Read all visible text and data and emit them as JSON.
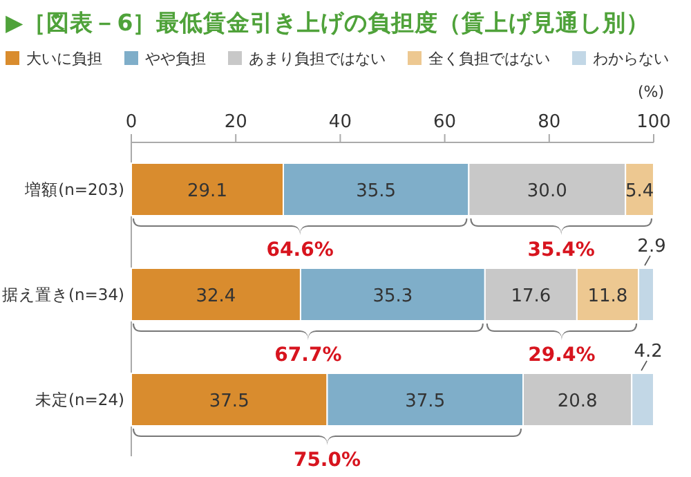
{
  "chart_data": {
    "type": "bar",
    "orientation": "horizontal",
    "stacked": true,
    "legend": "top",
    "grid": false,
    "title": "▶［図表－6］最低賃金引き上げの負担度（賃上げ見通し別）",
    "xlabel": "(%)",
    "categories": [
      "増額(n=203)",
      "据え置き(n=34)",
      "未定(n=24)"
    ],
    "xlim": [
      0,
      100
    ],
    "xticks": [
      0,
      20,
      40,
      60,
      80,
      100
    ],
    "series": [
      {
        "name": "大いに負担",
        "color": "#d98c2e",
        "values": [
          29.1,
          32.4,
          37.5
        ],
        "value_labels": [
          "29.1",
          "32.4",
          "37.5"
        ]
      },
      {
        "name": "やや負担",
        "color": "#7faec9",
        "values": [
          35.5,
          35.3,
          37.5
        ],
        "value_labels": [
          "35.5",
          "35.3",
          "37.5"
        ]
      },
      {
        "name": "あまり負担ではない",
        "color": "#c8c8c8",
        "values": [
          30.0,
          17.6,
          20.8
        ],
        "value_labels": [
          "30.0",
          "17.6",
          "20.8"
        ]
      },
      {
        "name": "全く負担ではない",
        "color": "#edc891",
        "values": [
          5.4,
          11.8,
          null
        ],
        "value_labels": [
          "5.4",
          "11.8",
          null
        ]
      },
      {
        "name": "わからない",
        "color": "#c2d7e6",
        "values": [
          null,
          2.9,
          4.2
        ],
        "value_labels": [
          null,
          "2.9",
          "4.2"
        ]
      }
    ],
    "annotations": [
      "64.6%",
      "35.4%",
      "67.7%",
      "29.4%",
      "75.0%"
    ]
  }
}
